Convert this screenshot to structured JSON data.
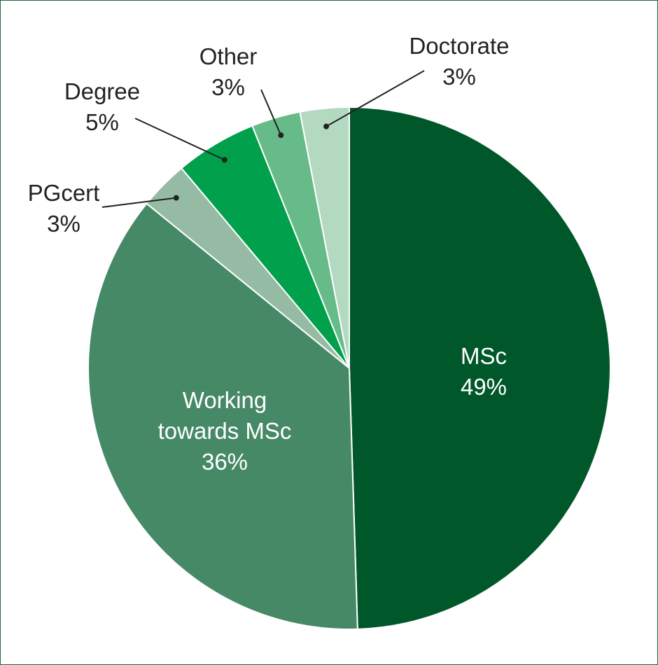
{
  "chart_data": {
    "type": "pie",
    "categories": [
      "MSc",
      "Working towards MSc",
      "PGcert",
      "Degree",
      "Other",
      "Doctorate"
    ],
    "values": [
      49,
      36,
      3,
      5,
      3,
      3
    ],
    "value_labels": [
      "49%",
      "36%",
      "3%",
      "5%",
      "3%",
      "3%"
    ],
    "colors": [
      "#00582a",
      "#468966",
      "#96bba5",
      "#00a04c",
      "#66bb88",
      "#b3d9c0"
    ]
  }
}
